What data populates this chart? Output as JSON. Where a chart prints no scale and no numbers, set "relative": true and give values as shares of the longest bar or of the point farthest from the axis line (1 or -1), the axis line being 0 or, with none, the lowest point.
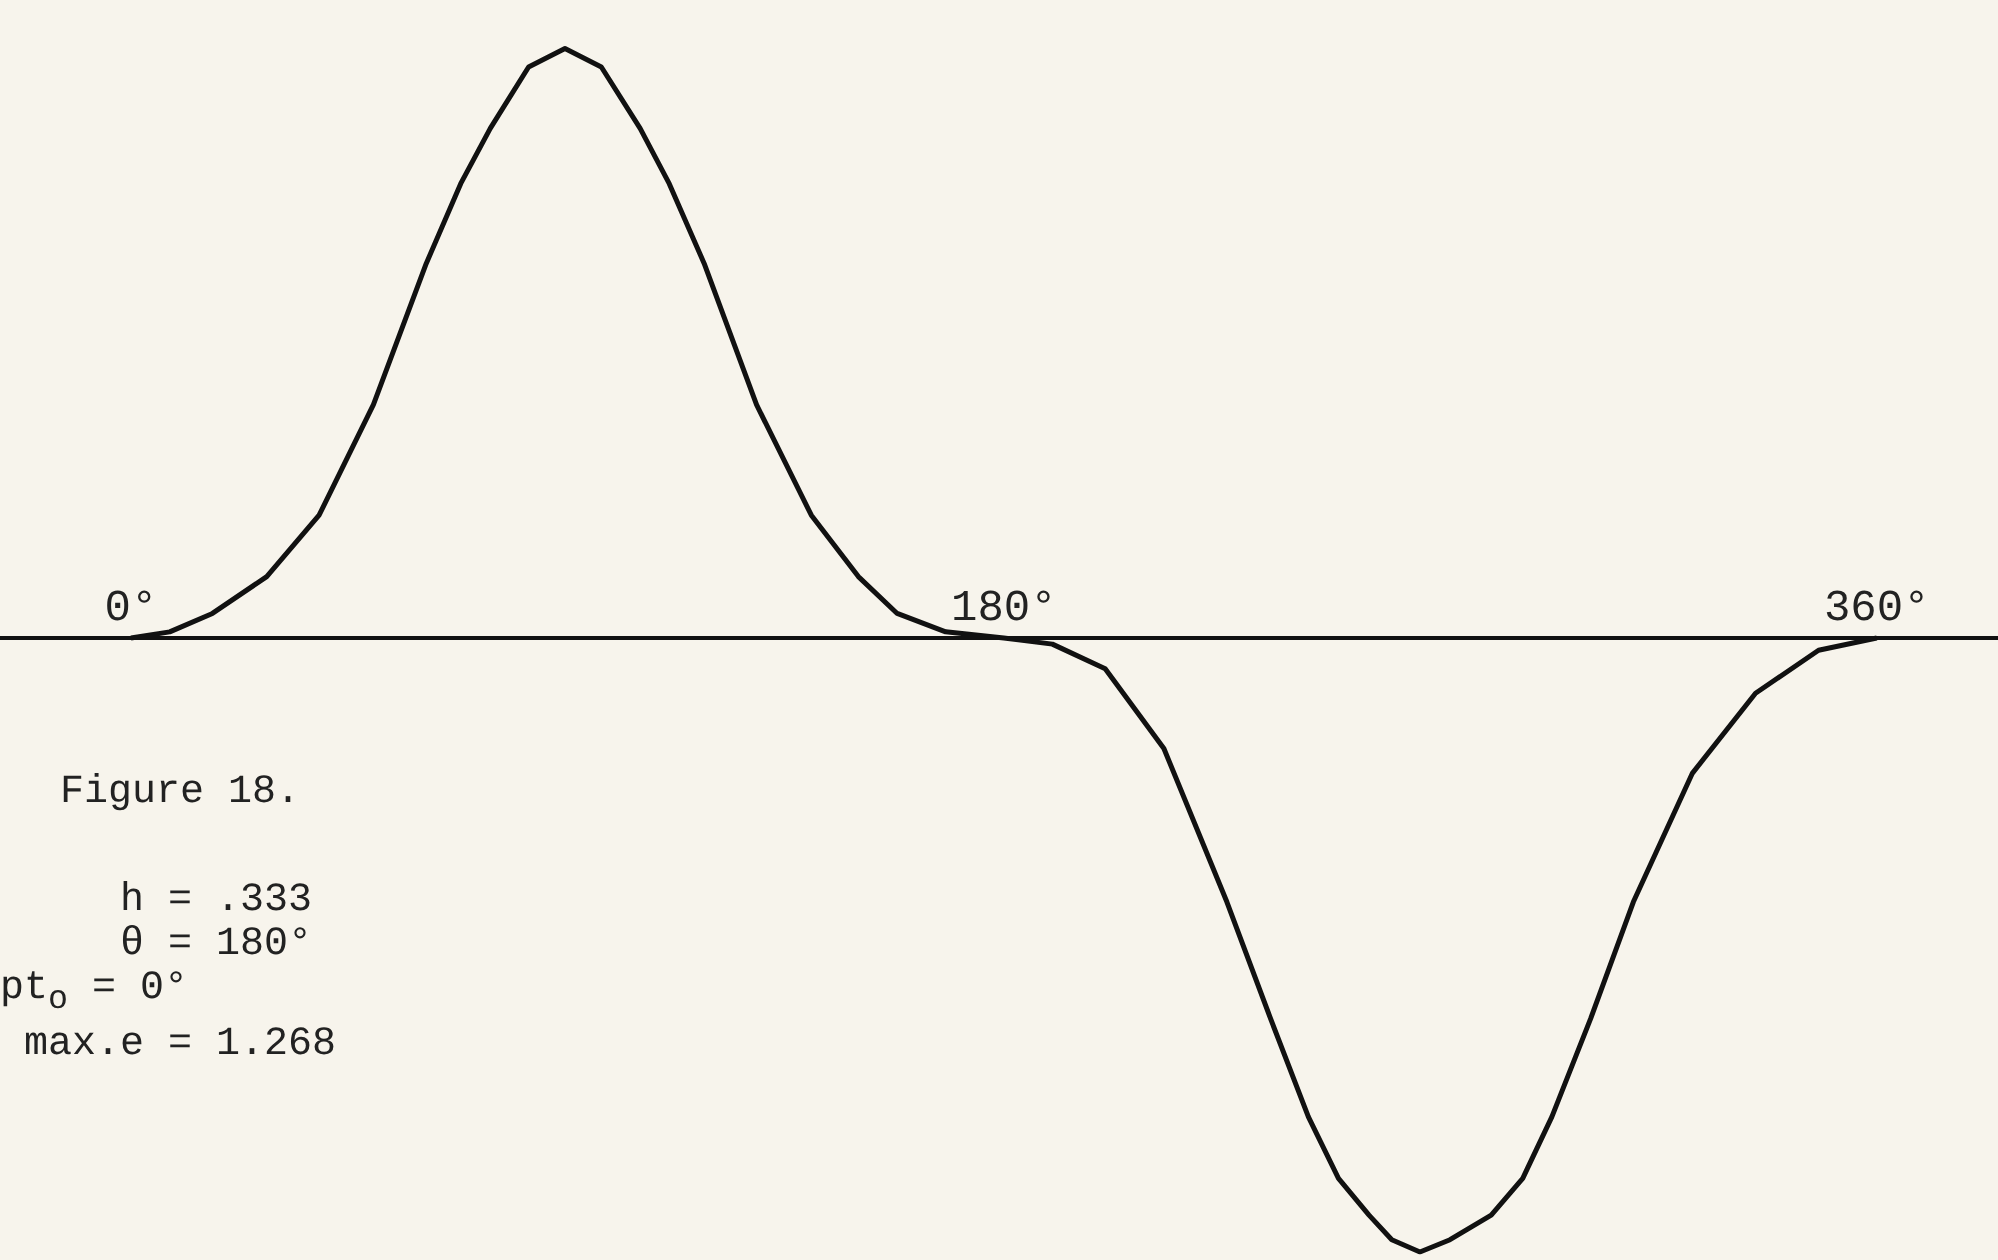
{
  "chart_data": {
    "type": "line",
    "relative": true,
    "title": "Figure 18.",
    "x": [
      0,
      8,
      16.8,
      28,
      38.8,
      50,
      60.9,
      68,
      74.1,
      82,
      89.5,
      97,
      105,
      111,
      118.2,
      129,
      140.3,
      150,
      158,
      168,
      180,
      190,
      200.9,
      213,
      226,
      235,
      242.8,
      249,
      255.3,
      260,
      265.8,
      272,
      280.5,
      287,
      293,
      301,
      309.8,
      322,
      335,
      348,
      360
    ],
    "series": [
      {
        "color": "#111111",
        "values": [
          0,
          0.01,
          0.04,
          0.1,
          0.2,
          0.38,
          0.61,
          0.74,
          0.83,
          0.93,
          0.96,
          0.93,
          0.83,
          0.74,
          0.61,
          0.38,
          0.2,
          0.1,
          0.04,
          0.01,
          0,
          -0.01,
          -0.05,
          -0.18,
          -0.43,
          -0.62,
          -0.78,
          -0.88,
          -0.94,
          -0.98,
          -1,
          -0.98,
          -0.94,
          -0.88,
          -0.78,
          -0.62,
          -0.43,
          -0.22,
          -0.09,
          -0.02,
          0
        ]
      }
    ],
    "xlim": [
      -27,
      385
    ],
    "xticks": [
      {
        "value": 0,
        "label": "0°"
      },
      {
        "value": 180,
        "label": "180°"
      },
      {
        "value": 360,
        "label": "360°"
      }
    ],
    "annotations": [
      "h = .333",
      "θ = 180°",
      "pt$_{o}$ = 0°",
      "max.e = 1.268"
    ],
    "legend": false,
    "marker": "none",
    "line_style": "solid"
  }
}
